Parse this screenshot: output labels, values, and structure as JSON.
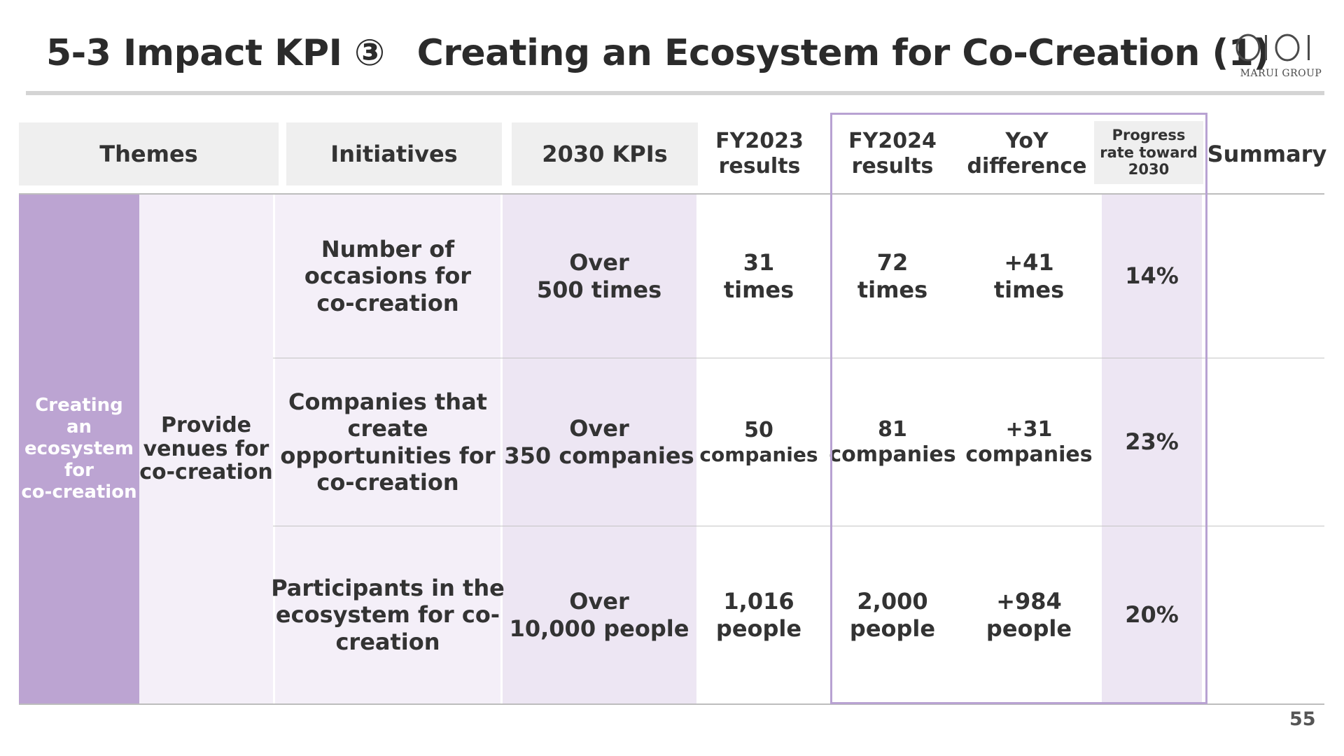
{
  "slide": {
    "title_part1": "5-3 Impact KPI ③",
    "title_part2": "Creating an Ecosystem for Co-Creation (1)",
    "page_number": "55"
  },
  "logo": {
    "mark": "OIOI",
    "group": "MARUI GROUP"
  },
  "headers": {
    "themes": "Themes",
    "initiatives": "Initiatives",
    "kpis_2030": "2030 KPIs",
    "fy2023": [
      "FY2023",
      "results"
    ],
    "fy2024": [
      "FY2024",
      "results"
    ],
    "yoy": [
      "YoY",
      "difference"
    ],
    "progress": [
      "Progress",
      "rate toward",
      "2030"
    ],
    "summary": "Summary"
  },
  "theme": [
    "Creating",
    "an",
    "ecosystem",
    "for",
    "co-creation"
  ],
  "initiative": [
    "Provide",
    "venues for",
    "co-creation"
  ],
  "rows": [
    {
      "kpi_name": [
        "Number of",
        "occasions for",
        "co-creation"
      ],
      "target": [
        "Over",
        "500 times"
      ],
      "fy2023": [
        "31",
        "times"
      ],
      "fy2024": [
        "72",
        "times"
      ],
      "yoy": [
        "+41",
        "times"
      ],
      "progress": "14%",
      "summary": ""
    },
    {
      "kpi_name": [
        "Companies that",
        "create",
        "opportunities for",
        "co-creation"
      ],
      "target": [
        "Over",
        "350 companies"
      ],
      "fy2023": [
        "50",
        "companies"
      ],
      "fy2024": [
        "81",
        "companies"
      ],
      "yoy": [
        "+31",
        "companies"
      ],
      "progress": "23%",
      "summary": ""
    },
    {
      "kpi_name": [
        "Participants in the",
        "ecosystem for co-",
        "creation"
      ],
      "target": [
        "Over",
        "10,000 people"
      ],
      "fy2023": [
        "1,016",
        "people"
      ],
      "fy2024": [
        "2,000",
        "people"
      ],
      "yoy": [
        "+984",
        "people"
      ],
      "progress": "20%",
      "summary": ""
    }
  ],
  "colors": {
    "theme_purple": "#bca4d2",
    "light_lavender": "#f4eff8",
    "mid_lavender": "#ede6f3",
    "highlight_border": "#b8a2d2",
    "header_gray": "#efefef"
  }
}
